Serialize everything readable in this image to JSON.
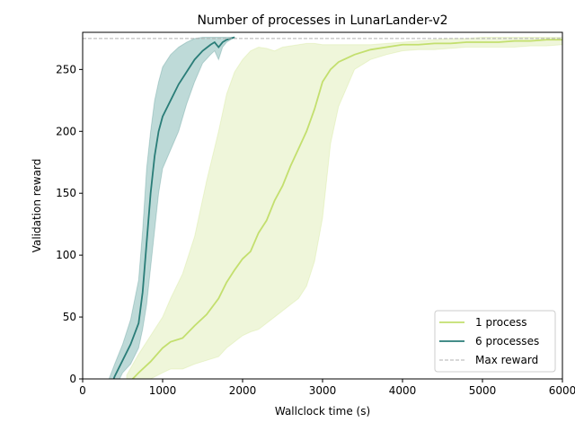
{
  "chart_data": {
    "type": "line",
    "title": "Number of processes in LunarLander-v2",
    "xlabel": "Wallclock time (s)",
    "ylabel": "Validation reward",
    "xlim": [
      0,
      6000
    ],
    "ylim": [
      0,
      280
    ],
    "xticks": [
      0,
      1000,
      2000,
      3000,
      4000,
      5000,
      6000
    ],
    "yticks": [
      0,
      50,
      100,
      150,
      200,
      250
    ],
    "legend_position": "lower right",
    "grid": false,
    "series": [
      {
        "name": "1 process",
        "color": "#c3df6e",
        "band_color": "#e9f3cd",
        "x": [
          550,
          700,
          850,
          1000,
          1100,
          1250,
          1400,
          1550,
          1700,
          1800,
          1900,
          2000,
          2100,
          2200,
          2300,
          2400,
          2500,
          2600,
          2700,
          2800,
          2900,
          3000,
          3100,
          3200,
          3400,
          3600,
          3800,
          4000,
          4200,
          4400,
          4600,
          4800,
          5000,
          5200,
          5400,
          5600,
          5800,
          6000
        ],
        "mean": [
          -5,
          5,
          14,
          25,
          30,
          33,
          43,
          52,
          65,
          78,
          88,
          97,
          103,
          118,
          128,
          144,
          156,
          172,
          186,
          200,
          218,
          240,
          250,
          256,
          262,
          266,
          268,
          270,
          270,
          271,
          271,
          272,
          272,
          272,
          273,
          273,
          274,
          274
        ],
        "upper": [
          3,
          20,
          35,
          50,
          65,
          85,
          115,
          160,
          200,
          230,
          248,
          258,
          265,
          268,
          267,
          265,
          268,
          269,
          270,
          271,
          271,
          270,
          270,
          270,
          270,
          270,
          271,
          272,
          273,
          274,
          275,
          275,
          276,
          276,
          276,
          276,
          276,
          276
        ],
        "lower": [
          -10,
          -10,
          0,
          5,
          8,
          8,
          12,
          15,
          18,
          25,
          30,
          35,
          38,
          40,
          45,
          50,
          55,
          60,
          65,
          75,
          95,
          130,
          190,
          220,
          250,
          258,
          262,
          265,
          266,
          266,
          267,
          268,
          268,
          268,
          268,
          269,
          269,
          270
        ]
      },
      {
        "name": "6 processes",
        "color": "#2a7d78",
        "band_color": "#a8cecb",
        "x": [
          300,
          400,
          500,
          600,
          700,
          750,
          800,
          850,
          900,
          950,
          1000,
          1100,
          1200,
          1300,
          1400,
          1500,
          1600,
          1650,
          1700,
          1750,
          1800,
          1850,
          1900
        ],
        "mean": [
          -15,
          2,
          15,
          28,
          45,
          70,
          110,
          150,
          180,
          200,
          212,
          225,
          238,
          248,
          258,
          265,
          270,
          272,
          268,
          272,
          274,
          275,
          276
        ],
        "upper": [
          -5,
          12,
          28,
          48,
          80,
          120,
          170,
          200,
          225,
          240,
          252,
          262,
          268,
          272,
          275,
          276,
          276,
          276,
          276,
          276,
          276,
          276,
          276
        ],
        "lower": [
          -25,
          -8,
          5,
          12,
          25,
          40,
          60,
          90,
          120,
          150,
          170,
          185,
          200,
          222,
          240,
          255,
          262,
          265,
          258,
          268,
          272,
          274,
          276
        ]
      }
    ],
    "reference_lines": [
      {
        "name": "Max reward",
        "y": 275,
        "color": "#b0b0b0",
        "style": "dashed"
      }
    ]
  }
}
